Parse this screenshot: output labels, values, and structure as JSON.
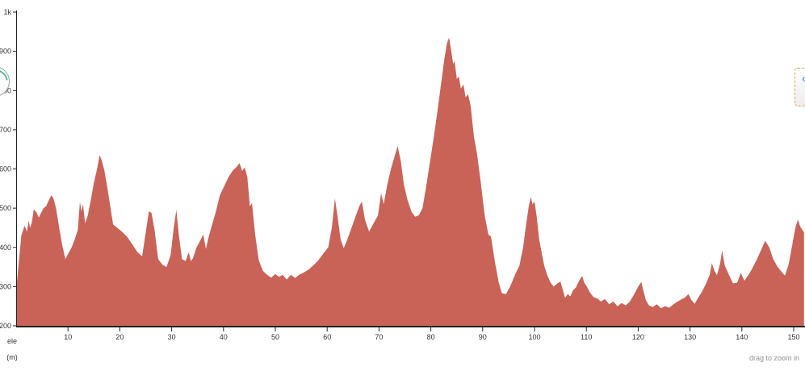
{
  "chart": {
    "hint": "drag to zoom in",
    "y_unit_label": {
      "line1": "ele",
      "line2": "(m)"
    },
    "colors": {
      "fill": "#c96358",
      "axis": "#222222",
      "tick_label": "#333333",
      "hint_text": "#8f8f8f",
      "button_border": "#e0a14c",
      "button_chevron": "#76a3d8",
      "pan_ring": "#9aa4a4",
      "pan_arc": "#5ab4a6"
    }
  },
  "controls": {
    "collapse_button_icon": "«"
  },
  "chart_data": {
    "type": "area",
    "title": "",
    "xlabel": "",
    "ylabel": "ele (m)",
    "xlim": [
      0,
      152
    ],
    "ylim": [
      200,
      1000
    ],
    "grid": false,
    "legend": false,
    "x_ticks": [
      {
        "label": "10",
        "value": 10
      },
      {
        "label": "20",
        "value": 20
      },
      {
        "label": "30",
        "value": 30
      },
      {
        "label": "40",
        "value": 40
      },
      {
        "label": "50",
        "value": 50
      },
      {
        "label": "60",
        "value": 60
      },
      {
        "label": "70",
        "value": 70
      },
      {
        "label": "80",
        "value": 80
      },
      {
        "label": "90",
        "value": 90
      },
      {
        "label": "100",
        "value": 100
      },
      {
        "label": "110",
        "value": 110
      },
      {
        "label": "120",
        "value": 120
      },
      {
        "label": "130",
        "value": 130
      },
      {
        "label": "140",
        "value": 140
      },
      {
        "label": "150",
        "value": 150
      }
    ],
    "y_ticks": [
      {
        "label": "1k",
        "value": 1000
      },
      {
        "label": "900",
        "value": 900
      },
      {
        "label": "800",
        "value": 800
      },
      {
        "label": "700",
        "value": 700
      },
      {
        "label": "600",
        "value": 600
      },
      {
        "label": "500",
        "value": 500
      },
      {
        "label": "400",
        "value": 400
      },
      {
        "label": "300",
        "value": 300
      },
      {
        "label": "200",
        "value": 200
      }
    ],
    "points": [
      [
        0,
        290
      ],
      [
        0.5,
        360
      ],
      [
        1,
        430
      ],
      [
        1.6,
        455
      ],
      [
        2.1,
        440
      ],
      [
        2.4,
        468
      ],
      [
        2.7,
        450
      ],
      [
        3,
        462
      ],
      [
        3.4,
        497
      ],
      [
        3.9,
        490
      ],
      [
        4.4,
        476
      ],
      [
        4.8,
        488
      ],
      [
        5.3,
        500
      ],
      [
        5.8,
        505
      ],
      [
        6.3,
        520
      ],
      [
        6.8,
        533
      ],
      [
        7.2,
        525
      ],
      [
        7.7,
        500
      ],
      [
        8.3,
        450
      ],
      [
        8.9,
        405
      ],
      [
        9.5,
        370
      ],
      [
        10.1,
        385
      ],
      [
        10.7,
        400
      ],
      [
        11.3,
        420
      ],
      [
        11.9,
        445
      ],
      [
        12.3,
        517
      ],
      [
        12.6,
        492
      ],
      [
        12.9,
        510
      ],
      [
        13.3,
        462
      ],
      [
        13.8,
        480
      ],
      [
        14.4,
        520
      ],
      [
        15,
        565
      ],
      [
        15.6,
        600
      ],
      [
        16.1,
        635
      ],
      [
        16.5,
        622
      ],
      [
        17,
        598
      ],
      [
        17.5,
        560
      ],
      [
        18.1,
        510
      ],
      [
        18.7,
        458
      ],
      [
        19.5,
        450
      ],
      [
        20.4,
        440
      ],
      [
        21.4,
        427
      ],
      [
        22.4,
        408
      ],
      [
        23.4,
        388
      ],
      [
        24.3,
        377
      ],
      [
        24.9,
        430
      ],
      [
        25.6,
        492
      ],
      [
        26.1,
        488
      ],
      [
        26.7,
        445
      ],
      [
        27.4,
        370
      ],
      [
        28.2,
        356
      ],
      [
        29,
        350
      ],
      [
        29.8,
        380
      ],
      [
        30.4,
        450
      ],
      [
        30.9,
        496
      ],
      [
        31.4,
        430
      ],
      [
        32,
        370
      ],
      [
        32.7,
        365
      ],
      [
        33.3,
        388
      ],
      [
        33.7,
        365
      ],
      [
        34.1,
        372
      ],
      [
        34.8,
        400
      ],
      [
        35.5,
        417
      ],
      [
        36.1,
        433
      ],
      [
        36.6,
        396
      ],
      [
        37.2,
        430
      ],
      [
        37.8,
        458
      ],
      [
        38.5,
        490
      ],
      [
        39.3,
        533
      ],
      [
        40.2,
        558
      ],
      [
        41,
        580
      ],
      [
        41.8,
        596
      ],
      [
        42.5,
        605
      ],
      [
        43.1,
        615
      ],
      [
        43.6,
        595
      ],
      [
        44.1,
        604
      ],
      [
        44.6,
        580
      ],
      [
        45.1,
        505
      ],
      [
        45.5,
        513
      ],
      [
        46.1,
        433
      ],
      [
        46.8,
        367
      ],
      [
        47.6,
        340
      ],
      [
        48.4,
        330
      ],
      [
        49.2,
        323
      ],
      [
        50,
        332
      ],
      [
        50.7,
        325
      ],
      [
        51.4,
        330
      ],
      [
        52.2,
        318
      ],
      [
        53,
        330
      ],
      [
        53.8,
        322
      ],
      [
        54.6,
        330
      ],
      [
        55.5,
        336
      ],
      [
        56.5,
        344
      ],
      [
        57.4,
        355
      ],
      [
        58.3,
        367
      ],
      [
        59.3,
        385
      ],
      [
        60.2,
        400
      ],
      [
        60.9,
        450
      ],
      [
        61.5,
        525
      ],
      [
        62,
        480
      ],
      [
        62.6,
        420
      ],
      [
        63.2,
        398
      ],
      [
        63.9,
        420
      ],
      [
        64.7,
        450
      ],
      [
        65.5,
        480
      ],
      [
        66.2,
        505
      ],
      [
        66.7,
        517
      ],
      [
        67.3,
        470
      ],
      [
        68.1,
        440
      ],
      [
        68.9,
        460
      ],
      [
        69.8,
        481
      ],
      [
        70.4,
        538
      ],
      [
        70.9,
        510
      ],
      [
        71.6,
        560
      ],
      [
        72.3,
        600
      ],
      [
        73,
        632
      ],
      [
        73.6,
        658
      ],
      [
        74.2,
        620
      ],
      [
        74.8,
        560
      ],
      [
        75.5,
        521
      ],
      [
        76.3,
        490
      ],
      [
        77,
        478
      ],
      [
        77.7,
        482
      ],
      [
        78.4,
        500
      ],
      [
        79.1,
        555
      ],
      [
        79.8,
        615
      ],
      [
        80.5,
        675
      ],
      [
        81.2,
        740
      ],
      [
        81.9,
        810
      ],
      [
        82.6,
        880
      ],
      [
        83.1,
        920
      ],
      [
        83.5,
        935
      ],
      [
        83.9,
        905
      ],
      [
        84.3,
        868
      ],
      [
        84.6,
        875
      ],
      [
        85,
        830
      ],
      [
        85.4,
        836
      ],
      [
        85.8,
        805
      ],
      [
        86.3,
        815
      ],
      [
        86.7,
        783
      ],
      [
        87.2,
        790
      ],
      [
        87.7,
        760
      ],
      [
        88.3,
        683
      ],
      [
        88.9,
        640
      ],
      [
        89.6,
        570
      ],
      [
        90.4,
        480
      ],
      [
        91.1,
        433
      ],
      [
        91.6,
        427
      ],
      [
        92.4,
        360
      ],
      [
        93.1,
        310
      ],
      [
        93.7,
        283
      ],
      [
        94.5,
        281
      ],
      [
        95.3,
        300
      ],
      [
        96.2,
        329
      ],
      [
        97.1,
        354
      ],
      [
        97.8,
        400
      ],
      [
        98.4,
        460
      ],
      [
        98.9,
        505
      ],
      [
        99.3,
        529
      ],
      [
        99.6,
        510
      ],
      [
        100,
        517
      ],
      [
        100.4,
        480
      ],
      [
        100.9,
        420
      ],
      [
        101.4,
        385
      ],
      [
        101.9,
        352
      ],
      [
        102.5,
        328
      ],
      [
        103.1,
        310
      ],
      [
        103.7,
        300
      ],
      [
        104.4,
        308
      ],
      [
        105,
        313
      ],
      [
        105.5,
        290
      ],
      [
        105.9,
        271
      ],
      [
        106.4,
        281
      ],
      [
        106.9,
        275
      ],
      [
        107.4,
        290
      ],
      [
        108,
        298
      ],
      [
        108.6,
        315
      ],
      [
        109.2,
        327
      ],
      [
        109.6,
        310
      ],
      [
        110.1,
        300
      ],
      [
        110.7,
        285
      ],
      [
        111.4,
        273
      ],
      [
        112.1,
        270
      ],
      [
        112.8,
        262
      ],
      [
        113.6,
        268
      ],
      [
        114.4,
        255
      ],
      [
        115.2,
        262
      ],
      [
        116,
        250
      ],
      [
        116.8,
        258
      ],
      [
        117.6,
        252
      ],
      [
        118.4,
        262
      ],
      [
        119.2,
        280
      ],
      [
        120,
        300
      ],
      [
        120.6,
        312
      ],
      [
        121,
        290
      ],
      [
        121.5,
        265
      ],
      [
        122.1,
        252
      ],
      [
        122.8,
        248
      ],
      [
        123.6,
        255
      ],
      [
        124.4,
        245
      ],
      [
        125.2,
        250
      ],
      [
        126,
        246
      ],
      [
        126.8,
        255
      ],
      [
        127.6,
        262
      ],
      [
        128.3,
        267
      ],
      [
        129,
        272
      ],
      [
        129.7,
        281
      ],
      [
        130.3,
        265
      ],
      [
        130.9,
        256
      ],
      [
        131.5,
        270
      ],
      [
        132.3,
        287
      ],
      [
        133.1,
        308
      ],
      [
        133.8,
        330
      ],
      [
        134.2,
        360
      ],
      [
        134.7,
        340
      ],
      [
        135.2,
        329
      ],
      [
        135.8,
        358
      ],
      [
        136.2,
        392
      ],
      [
        136.7,
        354
      ],
      [
        137.5,
        330
      ],
      [
        138.3,
        308
      ],
      [
        139.1,
        310
      ],
      [
        139.8,
        335
      ],
      [
        140.5,
        315
      ],
      [
        141.3,
        330
      ],
      [
        142,
        346
      ],
      [
        142.8,
        367
      ],
      [
        143.6,
        390
      ],
      [
        144.5,
        417
      ],
      [
        145.3,
        400
      ],
      [
        146,
        372
      ],
      [
        146.8,
        352
      ],
      [
        147.5,
        340
      ],
      [
        148.3,
        328
      ],
      [
        149,
        355
      ],
      [
        149.7,
        405
      ],
      [
        150.3,
        448
      ],
      [
        150.8,
        471
      ],
      [
        151.3,
        452
      ],
      [
        152,
        438
      ]
    ]
  }
}
